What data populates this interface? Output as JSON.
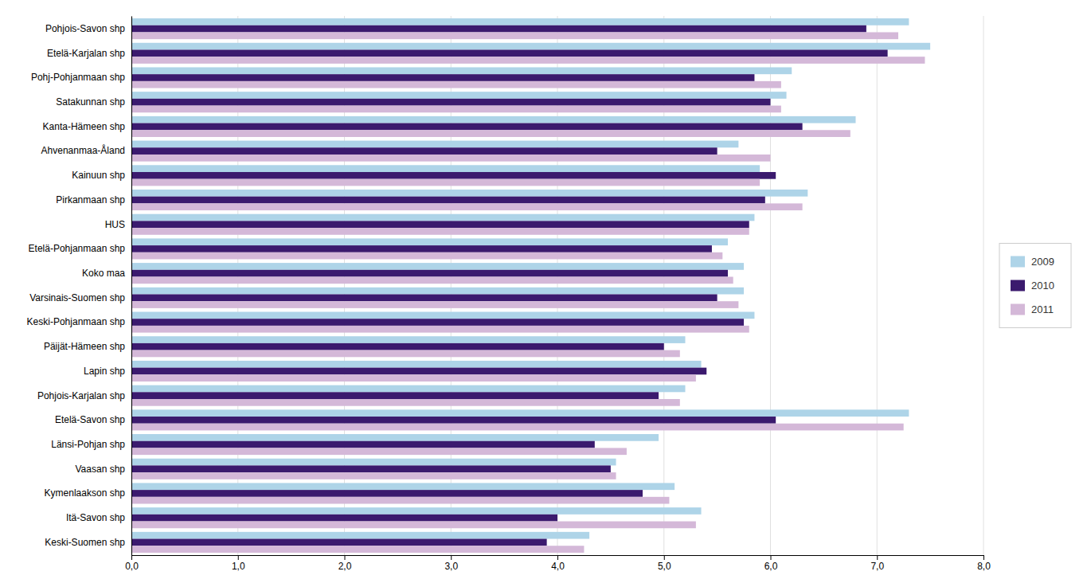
{
  "chart_data": {
    "type": "bar",
    "orientation": "horizontal",
    "categories": [
      "Pohjois-Savon shp",
      "Etelä-Karjalan shp",
      "Pohj-Pohjanmaan shp",
      "Satakunnan shp",
      "Kanta-Hämeen shp",
      "Ahvenanmaa-Åland",
      "Kainuun shp",
      "Pirkanmaan shp",
      "HUS",
      "Etelä-Pohjanmaan shp",
      "Koko maa",
      "Varsinais-Suomen shp",
      "Keski-Pohjanmaan shp",
      "Päijät-Hämeen shp",
      "Lapin shp",
      "Pohjois-Karjalan shp",
      "Etelä-Savon shp",
      "Länsi-Pohjan shp",
      "Vaasan shp",
      "Kymenlaakson shp",
      "Itä-Savon shp",
      "Keski-Suomen shp"
    ],
    "series": [
      {
        "name": "2009",
        "color": "#aed4e8",
        "values": [
          7.3,
          7.5,
          6.2,
          6.15,
          6.8,
          5.7,
          5.9,
          6.35,
          5.85,
          5.6,
          5.75,
          5.75,
          5.85,
          5.2,
          5.35,
          5.2,
          7.3,
          4.95,
          4.55,
          5.1,
          5.35,
          4.3
        ]
      },
      {
        "name": "2010",
        "color": "#3b1a6e",
        "values": [
          6.9,
          7.1,
          5.85,
          6.0,
          6.3,
          5.5,
          6.05,
          5.95,
          5.8,
          5.45,
          5.6,
          5.5,
          5.75,
          5.0,
          5.4,
          4.95,
          6.05,
          4.35,
          4.5,
          4.8,
          4.0,
          3.9
        ]
      },
      {
        "name": "2011",
        "color": "#d4b8d8",
        "values": [
          7.2,
          7.45,
          6.1,
          6.1,
          6.75,
          6.0,
          5.9,
          6.3,
          5.8,
          5.55,
          5.65,
          5.7,
          5.8,
          5.15,
          5.3,
          5.15,
          7.25,
          4.65,
          4.55,
          5.05,
          5.3,
          4.25
        ]
      }
    ],
    "xlim": [
      0,
      8.0
    ],
    "xticks": [
      {
        "value": 0.0,
        "label": "0,0"
      },
      {
        "value": 1.0,
        "label": "1,0"
      },
      {
        "value": 2.0,
        "label": "2,0"
      },
      {
        "value": 3.0,
        "label": "3,0"
      },
      {
        "value": 4.0,
        "label": "4,0"
      },
      {
        "value": 5.0,
        "label": "5,0"
      },
      {
        "value": 6.0,
        "label": "6,0"
      },
      {
        "value": 7.0,
        "label": "7,0"
      },
      {
        "value": 8.0,
        "label": "8,0"
      }
    ],
    "grid": true,
    "legend": "right"
  }
}
